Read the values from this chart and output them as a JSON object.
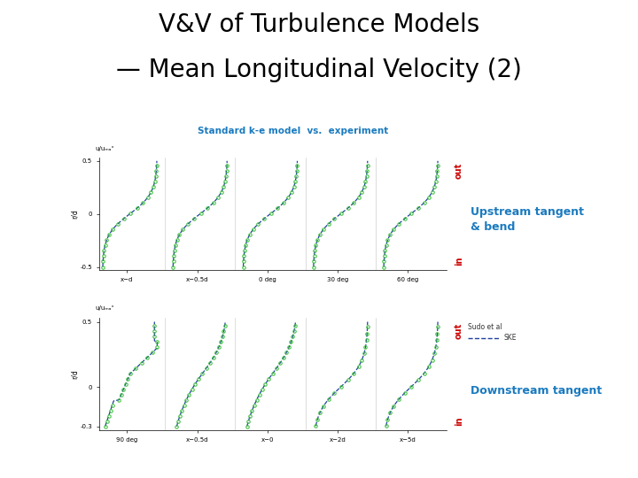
{
  "title_line1": "V&V of Turbulence Models",
  "title_line2": "— Mean Longitudinal Velocity (2)",
  "title_color": "#000000",
  "subtitle": "Standard k-e model  vs.  experiment",
  "subtitle_color": "#1a7abf",
  "label_upstream": "Upstream tangent\n& bend",
  "label_downstream": "Downstream tangent",
  "label_color": "#1a7abf",
  "out_color": "#cc0000",
  "in_color": "#cc0000",
  "line_color": "#2040a0",
  "circle_color": "#33bb33",
  "legend_exp": "Sudo et al",
  "legend_ske": "SKE",
  "top_x_labels": [
    "x−d",
    "x−0.5d",
    "0 deg",
    "30 deg",
    "60 deg"
  ],
  "bot_x_labels": [
    "90 deg",
    "x−0.5d",
    "x−0",
    "x−2d",
    "x−5d"
  ],
  "top_yticks": [
    "-0.5",
    "0",
    "0.5"
  ],
  "bot_yticks": [
    "-0.3",
    "0",
    "0.5"
  ]
}
